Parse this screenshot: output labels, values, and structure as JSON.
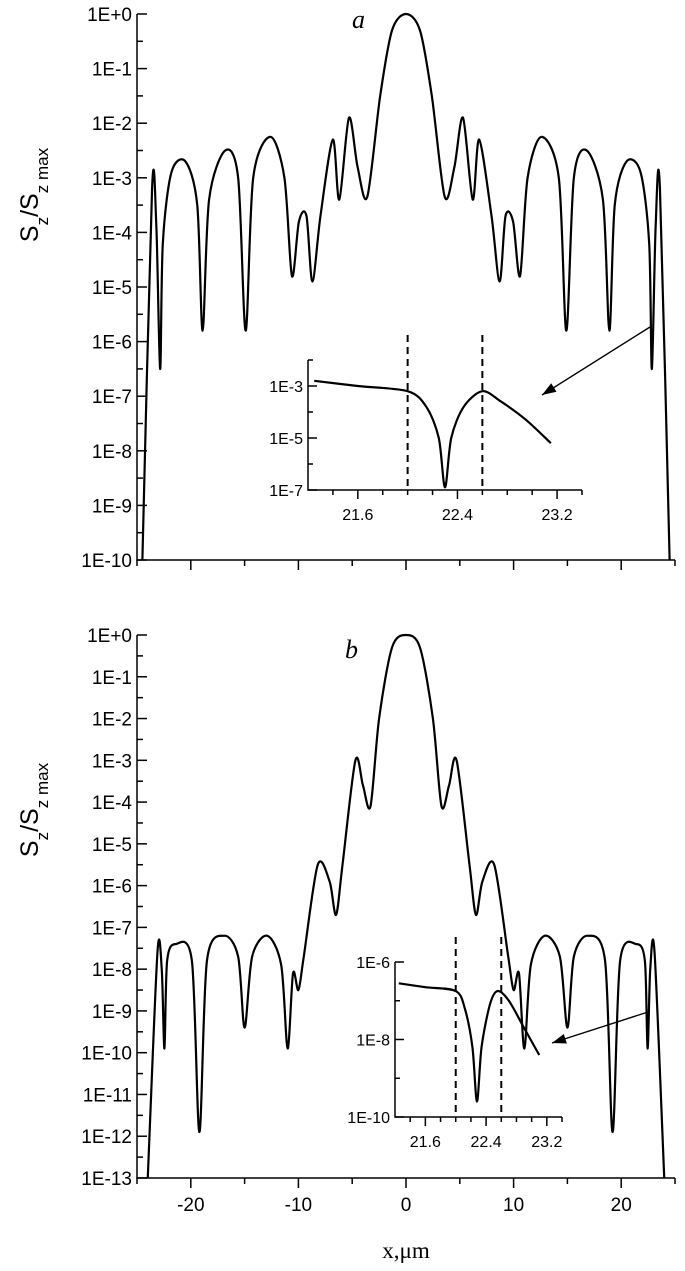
{
  "chart_data": [
    {
      "panel": "a",
      "type": "line",
      "ylabel_main": "S",
      "ylabel_sub": "z",
      "ylabel_den": "/S",
      "ylabel_den_sub": "z max",
      "y_scale": "log",
      "ylim": [
        1e-10,
        1
      ],
      "xlim": [
        -25,
        25
      ],
      "y_tick_labels": [
        "1E+0",
        "1E-1",
        "1E-2",
        "1E-3",
        "1E-4",
        "1E-5",
        "1E-6",
        "1E-7",
        "1E-8",
        "1E-9",
        "1E-10"
      ],
      "series_log10": [
        [
          -24.5,
          -10
        ],
        [
          -23.6,
          -3.2
        ],
        [
          -23.2,
          -3.9
        ],
        [
          -22.85,
          -6.5
        ],
        [
          -22.6,
          -4.2
        ],
        [
          -21.8,
          -2.9
        ],
        [
          -20.5,
          -2.7
        ],
        [
          -19.4,
          -3.5
        ],
        [
          -18.9,
          -5.8
        ],
        [
          -18.3,
          -3.4
        ],
        [
          -16.8,
          -2.5
        ],
        [
          -15.6,
          -3.0
        ],
        [
          -14.9,
          -5.8
        ],
        [
          -14.2,
          -3.0
        ],
        [
          -12.6,
          -2.25
        ],
        [
          -11.3,
          -3.0
        ],
        [
          -10.6,
          -4.8
        ],
        [
          -9.95,
          -3.8
        ],
        [
          -9.25,
          -3.7
        ],
        [
          -8.7,
          -4.9
        ],
        [
          -7.95,
          -3.7
        ],
        [
          -6.8,
          -2.3
        ],
        [
          -6.2,
          -3.4
        ],
        [
          -5.3,
          -1.9
        ],
        [
          -4.5,
          -2.8
        ],
        [
          -3.6,
          -3.35
        ],
        [
          -2.4,
          -1.5
        ],
        [
          -1.3,
          -0.3
        ],
        [
          0,
          0
        ],
        [
          1.3,
          -0.3
        ],
        [
          2.4,
          -1.5
        ],
        [
          3.6,
          -3.35
        ],
        [
          4.5,
          -2.8
        ],
        [
          5.3,
          -1.9
        ],
        [
          6.2,
          -3.4
        ],
        [
          6.8,
          -2.3
        ],
        [
          7.95,
          -3.7
        ],
        [
          8.7,
          -4.9
        ],
        [
          9.25,
          -3.7
        ],
        [
          9.95,
          -3.8
        ],
        [
          10.6,
          -4.8
        ],
        [
          11.3,
          -3.0
        ],
        [
          12.6,
          -2.25
        ],
        [
          14.2,
          -3.0
        ],
        [
          14.9,
          -5.8
        ],
        [
          15.6,
          -3.0
        ],
        [
          16.8,
          -2.5
        ],
        [
          18.3,
          -3.4
        ],
        [
          18.9,
          -5.8
        ],
        [
          19.4,
          -3.5
        ],
        [
          20.5,
          -2.7
        ],
        [
          21.8,
          -2.9
        ],
        [
          22.6,
          -4.2
        ],
        [
          22.85,
          -6.5
        ],
        [
          23.2,
          -3.9
        ],
        [
          23.6,
          -3.2
        ],
        [
          24.5,
          -10
        ]
      ],
      "inset": {
        "x_tick_labels": [
          "21.6",
          "22.4",
          "23.2"
        ],
        "y_tick_labels": [
          "1E-3",
          "1E-5",
          "1E-7"
        ],
        "xlim": [
          21.2,
          23.4
        ],
        "ylim_log10": [
          -7,
          -2
        ],
        "dashed_x": [
          22.0,
          22.6
        ],
        "series_log10": [
          [
            21.25,
            -2.8
          ],
          [
            21.6,
            -3.0
          ],
          [
            22.0,
            -3.2
          ],
          [
            22.15,
            -3.8
          ],
          [
            22.25,
            -5.0
          ],
          [
            22.3,
            -6.9
          ],
          [
            22.35,
            -5.0
          ],
          [
            22.45,
            -3.8
          ],
          [
            22.6,
            -3.2
          ],
          [
            22.75,
            -3.6
          ],
          [
            22.95,
            -4.3
          ],
          [
            23.15,
            -5.2
          ]
        ]
      }
    },
    {
      "panel": "b",
      "type": "line",
      "ylabel_main": "S",
      "ylabel_sub": "z",
      "ylabel_den": "/S",
      "ylabel_den_sub": "z max",
      "xlabel": "x,μm",
      "y_scale": "log",
      "ylim": [
        1e-13,
        1
      ],
      "xlim": [
        -25,
        25
      ],
      "x_tick_labels": [
        "-20",
        "-10",
        "0",
        "10",
        "20"
      ],
      "y_tick_labels": [
        "1E+0",
        "1E-1",
        "1E-2",
        "1E-3",
        "1E-4",
        "1E-5",
        "1E-6",
        "1E-7",
        "1E-8",
        "1E-9",
        "1E-10",
        "1E-11",
        "1E-12",
        "1E-13"
      ],
      "series_log10": [
        [
          -24.0,
          -13
        ],
        [
          -23.1,
          -7.6
        ],
        [
          -22.7,
          -8.0
        ],
        [
          -22.45,
          -9.9
        ],
        [
          -22.2,
          -7.8
        ],
        [
          -21.4,
          -7.4
        ],
        [
          -19.9,
          -7.8
        ],
        [
          -19.2,
          -11.9
        ],
        [
          -18.5,
          -7.8
        ],
        [
          -16.9,
          -7.2
        ],
        [
          -15.6,
          -7.7
        ],
        [
          -15.0,
          -9.4
        ],
        [
          -14.3,
          -7.7
        ],
        [
          -12.9,
          -7.2
        ],
        [
          -11.6,
          -7.9
        ],
        [
          -11.0,
          -9.9
        ],
        [
          -10.5,
          -8.1
        ],
        [
          -10.0,
          -8.5
        ],
        [
          -9.5,
          -7.7
        ],
        [
          -8.2,
          -5.5
        ],
        [
          -7.1,
          -5.9
        ],
        [
          -6.5,
          -6.7
        ],
        [
          -5.9,
          -5.5
        ],
        [
          -4.7,
          -3.0
        ],
        [
          -4.0,
          -3.6
        ],
        [
          -3.3,
          -4.1
        ],
        [
          -2.5,
          -2.0
        ],
        [
          -1.3,
          -0.3
        ],
        [
          0,
          0
        ],
        [
          1.3,
          -0.3
        ],
        [
          2.5,
          -2.0
        ],
        [
          3.3,
          -4.1
        ],
        [
          4.0,
          -3.6
        ],
        [
          4.7,
          -3.0
        ],
        [
          5.9,
          -5.5
        ],
        [
          6.5,
          -6.7
        ],
        [
          7.1,
          -5.9
        ],
        [
          8.2,
          -5.5
        ],
        [
          9.5,
          -7.7
        ],
        [
          10.0,
          -8.5
        ],
        [
          10.5,
          -8.1
        ],
        [
          11.0,
          -9.9
        ],
        [
          11.6,
          -7.9
        ],
        [
          12.9,
          -7.2
        ],
        [
          14.3,
          -7.7
        ],
        [
          15.0,
          -9.4
        ],
        [
          15.6,
          -7.7
        ],
        [
          16.9,
          -7.2
        ],
        [
          18.5,
          -7.8
        ],
        [
          19.2,
          -11.9
        ],
        [
          19.9,
          -7.8
        ],
        [
          21.4,
          -7.4
        ],
        [
          22.2,
          -7.8
        ],
        [
          22.45,
          -9.9
        ],
        [
          22.7,
          -8.0
        ],
        [
          23.1,
          -7.6
        ],
        [
          24.0,
          -13
        ]
      ],
      "inset": {
        "x_tick_labels": [
          "21.6",
          "22.4",
          "23.2"
        ],
        "y_tick_labels": [
          "1E-6",
          "1E-8",
          "1E-10"
        ],
        "xlim": [
          21.2,
          23.4
        ],
        "ylim_log10": [
          -10,
          -6
        ],
        "dashed_x": [
          22.0,
          22.6
        ],
        "series_log10": [
          [
            21.25,
            -6.55
          ],
          [
            21.6,
            -6.65
          ],
          [
            22.0,
            -6.75
          ],
          [
            22.12,
            -7.2
          ],
          [
            22.22,
            -8.2
          ],
          [
            22.28,
            -9.6
          ],
          [
            22.34,
            -8.2
          ],
          [
            22.45,
            -7.1
          ],
          [
            22.55,
            -6.75
          ],
          [
            22.7,
            -7.0
          ],
          [
            22.9,
            -7.7
          ],
          [
            23.1,
            -8.4
          ]
        ]
      }
    }
  ]
}
